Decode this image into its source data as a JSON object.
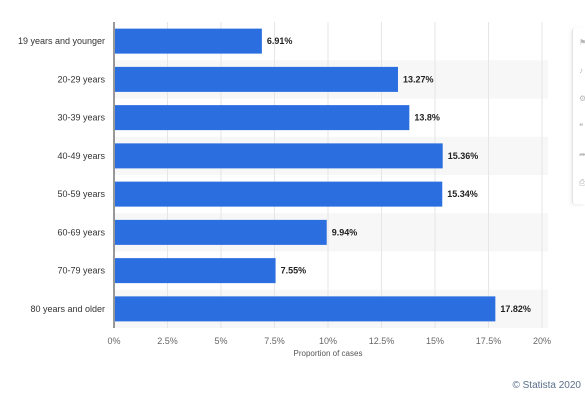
{
  "chart_data": {
    "type": "bar",
    "orientation": "horizontal",
    "categories": [
      "19 years and younger",
      "20-29 years",
      "30-39 years",
      "40-49 years",
      "50-59 years",
      "60-69 years",
      "70-79 years",
      "80 years and older"
    ],
    "values": [
      6.91,
      13.27,
      13.8,
      15.36,
      15.34,
      9.94,
      7.55,
      17.82
    ],
    "data_labels": [
      "6.91%",
      "13.27%",
      "13.8%",
      "15.36%",
      "15.34%",
      "9.94%",
      "7.55%",
      "17.82%"
    ],
    "xlabel": "Proportion of cases",
    "x_ticks": [
      "0%",
      "2.5%",
      "5%",
      "7.5%",
      "10%",
      "12.5%",
      "15%",
      "17.5%",
      "20%"
    ],
    "xlim": [
      0,
      20
    ],
    "grid": true,
    "bar_color": "#2a6ee0"
  },
  "credit": "© Statista 2020",
  "side_tools": [
    "bookmark-icon",
    "bell-icon",
    "settings-icon",
    "quote-icon",
    "share-icon",
    "print-icon"
  ]
}
